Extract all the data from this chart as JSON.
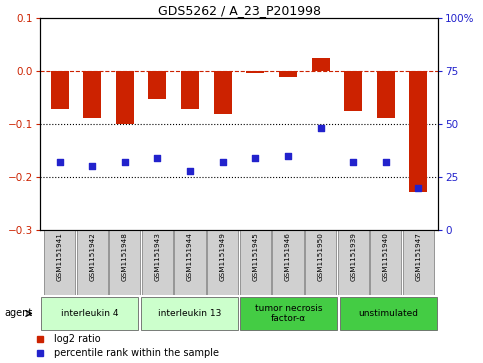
{
  "title": "GDS5262 / A_23_P201998",
  "samples": [
    "GSM1151941",
    "GSM1151942",
    "GSM1151948",
    "GSM1151943",
    "GSM1151944",
    "GSM1151949",
    "GSM1151945",
    "GSM1151946",
    "GSM1151950",
    "GSM1151939",
    "GSM1151940",
    "GSM1151947"
  ],
  "log2_ratio": [
    -0.072,
    -0.088,
    -0.1,
    -0.052,
    -0.072,
    -0.082,
    -0.004,
    -0.012,
    0.025,
    -0.075,
    -0.088,
    -0.228
  ],
  "percentile_rank": [
    32,
    30,
    32,
    34,
    28,
    32,
    34,
    35,
    48,
    32,
    32,
    20
  ],
  "bar_color": "#cc2200",
  "dot_color": "#2222cc",
  "ylim_left": [
    -0.3,
    0.1
  ],
  "ylim_right": [
    0,
    100
  ],
  "yticks_left": [
    0.1,
    0.0,
    -0.1,
    -0.2,
    -0.3
  ],
  "yticks_right": [
    100,
    75,
    50,
    25,
    0
  ],
  "hline_zero_color": "#cc2200",
  "hline_dotted_color": "black",
  "agent_groups": [
    {
      "label": "interleukin 4",
      "start": 0,
      "end": 3,
      "color": "#ccffcc"
    },
    {
      "label": "interleukin 13",
      "start": 3,
      "end": 6,
      "color": "#ccffcc"
    },
    {
      "label": "tumor necrosis\nfactor-α",
      "start": 6,
      "end": 9,
      "color": "#44cc44"
    },
    {
      "label": "unstimulated",
      "start": 9,
      "end": 12,
      "color": "#44cc44"
    }
  ],
  "legend_items": [
    {
      "label": "log2 ratio",
      "color": "#cc2200"
    },
    {
      "label": "percentile rank within the sample",
      "color": "#2222cc"
    }
  ],
  "bg_color": "white",
  "spine_color": "black",
  "bar_width": 0.55,
  "dot_size": 20
}
